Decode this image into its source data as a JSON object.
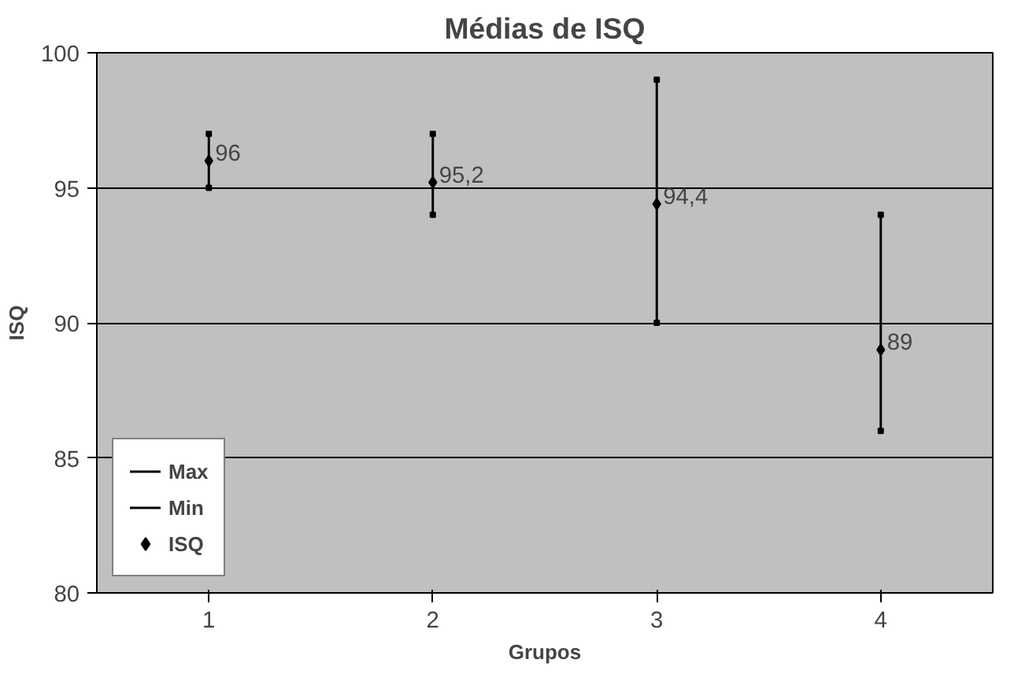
{
  "chart_data": {
    "type": "scatter",
    "title": "Médias de ISQ",
    "xlabel": "Grupos",
    "ylabel": "ISQ",
    "categories": [
      "1",
      "2",
      "3",
      "4"
    ],
    "series": [
      {
        "name": "Max",
        "color": "#000000",
        "marker": "square",
        "values": [
          97,
          97,
          99,
          94
        ]
      },
      {
        "name": "Min",
        "color": "#000000",
        "marker": "square",
        "values": [
          95,
          94,
          90,
          86
        ]
      },
      {
        "name": "ISQ",
        "color": "#000000",
        "marker": "diamond",
        "values": [
          96,
          95.2,
          94.4,
          89
        ],
        "value_labels": [
          "96",
          "95,2",
          "94,4",
          "89"
        ]
      }
    ],
    "ylim": [
      80,
      100
    ],
    "yticks": [
      80,
      85,
      90,
      95,
      100
    ],
    "grid": "y",
    "legend": "bottom left"
  }
}
